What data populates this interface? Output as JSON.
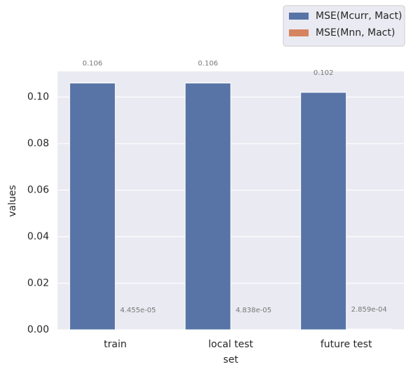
{
  "chart_data": {
    "type": "bar",
    "categories": [
      "train",
      "local test",
      "future test"
    ],
    "series": [
      {
        "name": "MSE(Mcurr, Mact)",
        "color": "#5874a6",
        "values": [
          0.106,
          0.106,
          0.102
        ]
      },
      {
        "name": "MSE(Mnn, Mact)",
        "color": "#d5845f",
        "values": [
          4.455e-05,
          4.838e-05,
          0.0002859
        ],
        "value_labels": [
          "4.455e-05",
          "4.838e-05",
          "2.859e-04"
        ]
      }
    ],
    "xlabel": "set",
    "ylabel": "values",
    "ylim": [
      0,
      0.111
    ],
    "yticks": [
      {
        "value": 0,
        "label": "0.00"
      },
      0.02,
      0.04,
      0.06,
      0.08,
      {
        "value": 0.1,
        "label": "0.10"
      }
    ],
    "grid": true,
    "legend": "upper right"
  }
}
